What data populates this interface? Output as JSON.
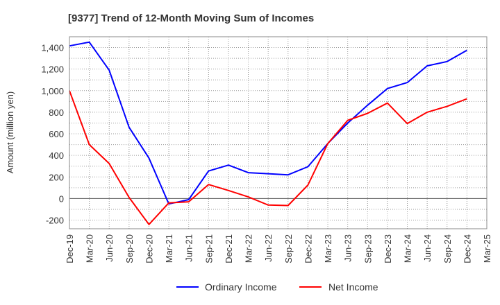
{
  "chart_data": {
    "type": "line",
    "title": "[9377]  Trend of 12-Month Moving Sum of Incomes",
    "xlabel": "",
    "ylabel": "Amount (million yen)",
    "ylim": [
      -280,
      1500
    ],
    "yticks": [
      -200,
      0,
      200,
      400,
      600,
      800,
      1000,
      1200,
      1400
    ],
    "ytick_labels": [
      "-200",
      "0",
      "200",
      "400",
      "600",
      "800",
      "1,000",
      "1,200",
      "1,400"
    ],
    "categories": [
      "Dec-19",
      "Mar-20",
      "Jun-20",
      "Sep-20",
      "Dec-20",
      "Mar-21",
      "Jun-21",
      "Sep-21",
      "Dec-21",
      "Mar-22",
      "Jun-22",
      "Sep-22",
      "Dec-22",
      "Mar-23",
      "Jun-23",
      "Sep-23",
      "Dec-23",
      "Mar-24",
      "Jun-24",
      "Sep-24",
      "Dec-24",
      "Mar-25"
    ],
    "grid": true,
    "legend_position": "bottom",
    "series": [
      {
        "name": "Ordinary Income",
        "color": "#0000ff",
        "values": [
          1415,
          1450,
          1190,
          660,
          375,
          -50,
          -10,
          255,
          310,
          240,
          230,
          220,
          295,
          510,
          700,
          865,
          1020,
          1075,
          1230,
          1270,
          1375,
          null
        ]
      },
      {
        "name": "Net Income",
        "color": "#ff0000",
        "values": [
          1000,
          500,
          325,
          10,
          -240,
          -40,
          -30,
          130,
          75,
          15,
          -60,
          -65,
          125,
          510,
          725,
          790,
          885,
          695,
          800,
          855,
          925,
          null
        ]
      }
    ]
  }
}
